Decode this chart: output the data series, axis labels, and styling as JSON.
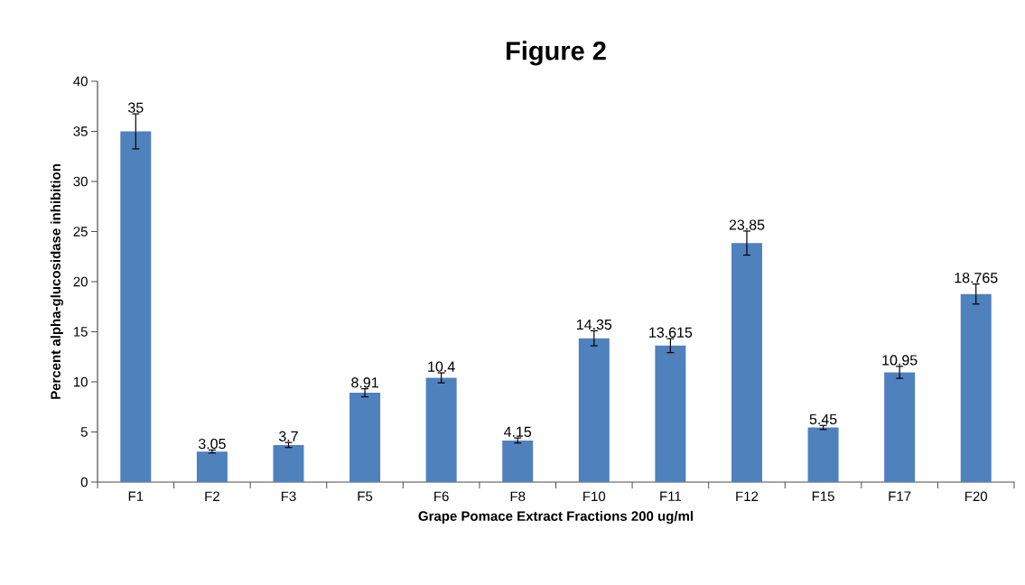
{
  "chart_data": {
    "type": "bar",
    "title": "Figure 2",
    "xlabel": "Grape Pomace Extract Fractions 200 ug/ml",
    "ylabel": "Percent alpha-glucosidase inhibition",
    "categories": [
      "F1",
      "F2",
      "F3",
      "F5",
      "F6",
      "F8",
      "F10",
      "F11",
      "F12",
      "F15",
      "F17",
      "F20"
    ],
    "values": [
      35,
      3.05,
      3.7,
      8.91,
      10.4,
      4.15,
      14.35,
      13.615,
      23.85,
      5.45,
      10.95,
      18.765
    ],
    "errors": [
      1.75,
      0.15,
      0.25,
      0.4,
      0.5,
      0.25,
      0.75,
      0.7,
      1.2,
      0.2,
      0.6,
      1.0
    ],
    "color": "#4f81bd",
    "data_labels": true,
    "grid": false,
    "ylim": [
      0,
      40
    ],
    "yticks": [
      0,
      5,
      10,
      15,
      20,
      25,
      30,
      35,
      40
    ]
  }
}
